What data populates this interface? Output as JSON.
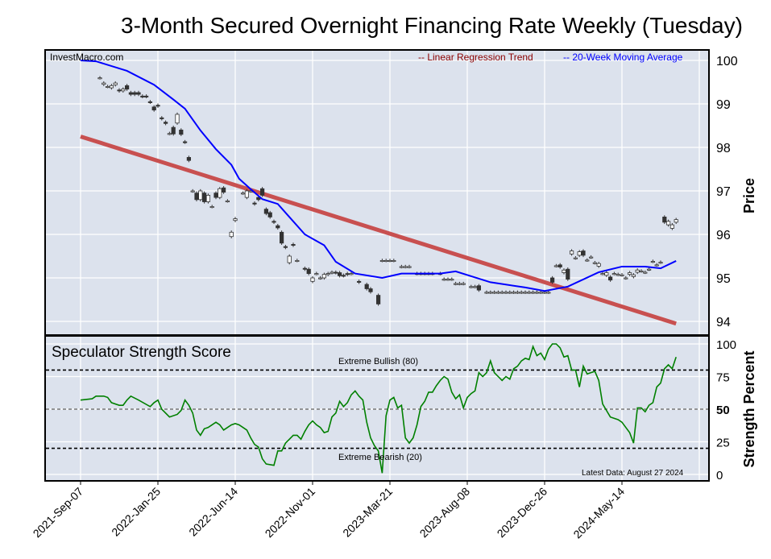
{
  "chart_data": [
    {
      "type": "candlestick",
      "title": "3-Month Secured Overnight Financing Rate Weekly (Tuesday)",
      "watermark": "InvestMacro.com",
      "ylabel": "Price",
      "ylim": [
        93.75,
        100.25
      ],
      "yticks": [
        94,
        95,
        96,
        97,
        98,
        99,
        100
      ],
      "x_unit": "weeks since 2021-Sep-07",
      "xticks": [
        0,
        20,
        40,
        60,
        80,
        100,
        120,
        140
      ],
      "xtick_labels": [
        "2021-Sep-07",
        "2022-Jan-25",
        "2022-Jun-14",
        "2022-Nov-01",
        "2023-Mar-21",
        "2023-Aug-08",
        "2023-Dec-26",
        "2024-May-14"
      ],
      "grid": true,
      "legend": {
        "placement": "top-right",
        "entries": [
          {
            "label": "-- Linear Regression Trend",
            "color": "#8b0000"
          },
          {
            "label": "-- 20-Week Moving Average",
            "color": "#0000ff"
          }
        ]
      },
      "candles_week_open_close": [
        [
          5,
          99.6,
          99.6
        ],
        [
          6,
          99.45,
          99.48
        ],
        [
          7,
          99.4,
          99.4
        ],
        [
          8,
          99.37,
          99.42
        ],
        [
          9,
          99.44,
          99.48
        ],
        [
          10,
          99.32,
          99.3
        ],
        [
          11,
          99.3,
          99.34
        ],
        [
          12,
          99.42,
          99.34
        ],
        [
          13,
          99.26,
          99.22
        ],
        [
          14,
          99.26,
          99.22
        ],
        [
          15,
          99.26,
          99.22
        ],
        [
          16,
          99.18,
          99.17
        ],
        [
          17,
          99.18,
          99.17
        ],
        [
          18,
          99.05,
          99.04
        ],
        [
          19,
          98.93,
          98.86
        ],
        [
          20,
          98.97,
          98.95
        ],
        [
          21,
          98.68,
          98.66
        ],
        [
          22,
          98.58,
          98.55
        ],
        [
          23,
          98.32,
          98.32
        ],
        [
          24,
          98.46,
          98.31
        ],
        [
          25,
          98.56,
          98.76
        ],
        [
          26,
          98.4,
          98.3
        ],
        [
          27,
          98.13,
          98.12
        ],
        [
          28,
          97.77,
          97.7
        ],
        [
          29,
          97.0,
          97.0
        ],
        [
          30,
          96.95,
          96.8
        ],
        [
          31,
          96.8,
          97.0
        ],
        [
          32,
          96.95,
          96.75
        ],
        [
          33,
          96.75,
          96.9
        ],
        [
          34,
          96.64,
          96.64
        ],
        [
          35,
          96.95,
          96.85
        ],
        [
          36,
          96.85,
          97.05
        ],
        [
          37,
          97.07,
          96.97
        ],
        [
          38,
          96.77,
          96.77
        ],
        [
          39,
          95.95,
          96.05
        ],
        [
          40,
          96.32,
          96.36
        ],
        [
          42,
          96.95,
          96.95
        ],
        [
          43,
          96.85,
          97.0
        ],
        [
          44,
          97.0,
          97.0
        ],
        [
          45,
          96.72,
          96.7
        ],
        [
          46,
          96.85,
          96.8
        ],
        [
          47,
          97.05,
          96.9
        ],
        [
          48,
          96.58,
          96.48
        ],
        [
          49,
          96.5,
          96.4
        ],
        [
          50,
          96.3,
          96.28
        ],
        [
          51,
          96.2,
          96.15
        ],
        [
          52,
          96.05,
          95.8
        ],
        [
          53,
          95.72,
          95.7
        ],
        [
          54,
          95.35,
          95.5
        ],
        [
          55,
          95.77,
          95.75
        ],
        [
          56,
          95.4,
          95.4
        ],
        [
          58,
          95.22,
          95.2
        ],
        [
          59,
          95.2,
          95.1
        ],
        [
          60,
          94.92,
          95.0
        ],
        [
          61,
          95.1,
          95.1
        ],
        [
          62,
          95.0,
          95.0
        ],
        [
          63,
          95.0,
          95.08
        ],
        [
          64,
          95.08,
          95.1
        ],
        [
          65,
          95.12,
          95.13
        ],
        [
          66,
          95.13,
          95.12
        ],
        [
          67,
          95.12,
          95.05
        ],
        [
          68,
          95.06,
          95.05
        ],
        [
          69,
          95.1,
          95.08
        ],
        [
          70,
          95.1,
          95.1
        ],
        [
          72,
          94.92,
          94.9
        ],
        [
          74,
          94.85,
          94.75
        ],
        [
          75,
          94.75,
          94.68
        ],
        [
          77,
          94.6,
          94.4
        ],
        [
          78,
          95.4,
          95.4
        ],
        [
          79,
          95.4,
          95.4
        ],
        [
          80,
          95.4,
          95.4
        ],
        [
          81,
          95.4,
          95.4
        ],
        [
          83,
          95.26,
          95.26
        ],
        [
          84,
          95.26,
          95.26
        ],
        [
          85,
          95.26,
          95.26
        ],
        [
          87,
          95.1,
          95.1
        ],
        [
          88,
          95.1,
          95.1
        ],
        [
          89,
          95.1,
          95.1
        ],
        [
          90,
          95.1,
          95.1
        ],
        [
          91,
          95.1,
          95.1
        ],
        [
          93,
          95.1,
          95.1
        ],
        [
          94,
          94.97,
          94.97
        ],
        [
          95,
          94.97,
          94.97
        ],
        [
          96,
          94.97,
          94.97
        ],
        [
          97,
          94.87,
          94.87
        ],
        [
          98,
          94.87,
          94.87
        ],
        [
          99,
          94.87,
          94.87
        ],
        [
          101,
          94.8,
          94.8
        ],
        [
          102,
          94.8,
          94.8
        ],
        [
          103,
          94.82,
          94.72
        ],
        [
          105,
          94.67,
          94.67
        ],
        [
          106,
          94.67,
          94.67
        ],
        [
          107,
          94.67,
          94.67
        ],
        [
          108,
          94.67,
          94.67
        ],
        [
          109,
          94.67,
          94.67
        ],
        [
          110,
          94.67,
          94.67
        ],
        [
          111,
          94.67,
          94.67
        ],
        [
          112,
          94.67,
          94.67
        ],
        [
          113,
          94.67,
          94.67
        ],
        [
          114,
          94.67,
          94.67
        ],
        [
          115,
          94.67,
          94.67
        ],
        [
          116,
          94.67,
          94.67
        ],
        [
          117,
          94.67,
          94.67
        ],
        [
          118,
          94.67,
          94.67
        ],
        [
          119,
          94.67,
          94.67
        ],
        [
          120,
          94.67,
          94.67
        ],
        [
          121,
          94.67,
          94.67
        ],
        [
          122,
          95.0,
          94.9
        ],
        [
          123,
          95.28,
          95.28
        ],
        [
          124,
          95.3,
          95.25
        ],
        [
          125,
          95.12,
          95.18
        ],
        [
          126,
          95.2,
          94.97
        ],
        [
          127,
          95.55,
          95.62
        ],
        [
          128,
          95.46,
          95.46
        ],
        [
          129,
          95.52,
          95.6
        ],
        [
          130,
          95.62,
          95.52
        ],
        [
          131,
          95.41,
          95.41
        ],
        [
          132,
          95.48,
          95.48
        ],
        [
          133,
          95.35,
          95.35
        ],
        [
          134,
          95.27,
          95.33
        ],
        [
          135,
          95.1,
          95.1
        ],
        [
          136,
          95.06,
          95.12
        ],
        [
          137,
          95.02,
          94.95
        ],
        [
          138,
          95.1,
          95.1
        ],
        [
          139,
          95.08,
          95.08
        ],
        [
          140,
          95.07,
          95.07
        ],
        [
          141,
          95.0,
          95.0
        ],
        [
          142,
          95.08,
          95.12
        ],
        [
          143,
          95.03,
          95.07
        ],
        [
          144,
          95.13,
          95.18
        ],
        [
          145,
          95.16,
          95.16
        ],
        [
          146,
          95.13,
          95.13
        ],
        [
          147,
          95.2,
          95.2
        ],
        [
          148,
          95.38,
          95.38
        ],
        [
          149,
          95.3,
          95.3
        ],
        [
          150,
          95.36,
          95.36
        ],
        [
          151,
          96.4,
          96.28
        ],
        [
          152,
          96.22,
          96.3
        ],
        [
          153,
          96.14,
          96.22
        ],
        [
          154,
          96.28,
          96.34
        ]
      ],
      "moving_average_20w": [
        [
          0,
          100.0
        ],
        [
          4,
          99.98
        ],
        [
          12,
          99.76
        ],
        [
          19,
          99.44
        ],
        [
          24,
          99.1
        ],
        [
          27,
          98.89
        ],
        [
          31,
          98.39
        ],
        [
          35,
          97.96
        ],
        [
          39,
          97.6
        ],
        [
          41,
          97.28
        ],
        [
          44,
          97.04
        ],
        [
          47,
          96.81
        ],
        [
          51,
          96.7
        ],
        [
          54,
          96.4
        ],
        [
          58,
          96.0
        ],
        [
          63,
          95.75
        ],
        [
          66,
          95.37
        ],
        [
          71,
          95.1
        ],
        [
          78,
          95.0
        ],
        [
          83,
          95.1
        ],
        [
          93,
          95.1
        ],
        [
          97,
          95.15
        ],
        [
          106,
          94.9
        ],
        [
          115,
          94.78
        ],
        [
          120,
          94.7
        ],
        [
          126,
          94.8
        ],
        [
          134,
          95.13
        ],
        [
          140,
          95.26
        ],
        [
          146,
          95.26
        ],
        [
          150,
          95.22
        ],
        [
          154,
          95.39
        ]
      ],
      "regression_trend": [
        [
          0,
          98.25
        ],
        [
          154,
          93.95
        ]
      ]
    },
    {
      "type": "line",
      "title": "Speculator Strength Score",
      "ylabel": "Strength Percent",
      "ylim": [
        0,
        100
      ],
      "yticks": [
        0,
        25,
        50,
        75,
        100
      ],
      "annotations": {
        "bullish": "Extreme Bullish (80)",
        "bearish": "Extreme Bearish (20)",
        "latest": "Latest Data: August 27 2024"
      },
      "thresholds": {
        "bullish": 80,
        "neutral": 50,
        "bearish": 20
      },
      "series_color": "#008000",
      "values_week_strength": [
        [
          0,
          57
        ],
        [
          3,
          58
        ],
        [
          4,
          60
        ],
        [
          6,
          60
        ],
        [
          7,
          59
        ],
        [
          8,
          55
        ],
        [
          10,
          53
        ],
        [
          11,
          53
        ],
        [
          12,
          57
        ],
        [
          13,
          60
        ],
        [
          15,
          57
        ],
        [
          18,
          52
        ],
        [
          19,
          55
        ],
        [
          20,
          57
        ],
        [
          21,
          50
        ],
        [
          23,
          44
        ],
        [
          25,
          46
        ],
        [
          26,
          49
        ],
        [
          27,
          57
        ],
        [
          28,
          53
        ],
        [
          29,
          47
        ],
        [
          30,
          34
        ],
        [
          31,
          30
        ],
        [
          32,
          35
        ],
        [
          33,
          36
        ],
        [
          34,
          38
        ],
        [
          35,
          40
        ],
        [
          36,
          38
        ],
        [
          37,
          34
        ],
        [
          38,
          36
        ],
        [
          39,
          38
        ],
        [
          40,
          39
        ],
        [
          41,
          38
        ],
        [
          42,
          36
        ],
        [
          43,
          34
        ],
        [
          44,
          28
        ],
        [
          45,
          23
        ],
        [
          46,
          21
        ],
        [
          47,
          12
        ],
        [
          48,
          8
        ],
        [
          50,
          7
        ],
        [
          51,
          18
        ],
        [
          52,
          18
        ],
        [
          53,
          24
        ],
        [
          54,
          27
        ],
        [
          55,
          30
        ],
        [
          56,
          30
        ],
        [
          57,
          27
        ],
        [
          58,
          33
        ],
        [
          59,
          38
        ],
        [
          60,
          41
        ],
        [
          61,
          38
        ],
        [
          62,
          36
        ],
        [
          63,
          32
        ],
        [
          64,
          33
        ],
        [
          65,
          44
        ],
        [
          66,
          47
        ],
        [
          67,
          56
        ],
        [
          68,
          52
        ],
        [
          69,
          55
        ],
        [
          70,
          61
        ],
        [
          71,
          64
        ],
        [
          72,
          60
        ],
        [
          73,
          57
        ],
        [
          74,
          40
        ],
        [
          75,
          28
        ],
        [
          76,
          22
        ],
        [
          77,
          18
        ],
        [
          78,
          1
        ],
        [
          79,
          45
        ],
        [
          80,
          57
        ],
        [
          81,
          59
        ],
        [
          82,
          51
        ],
        [
          83,
          53
        ],
        [
          84,
          28
        ],
        [
          85,
          24
        ],
        [
          86,
          28
        ],
        [
          87,
          38
        ],
        [
          88,
          52
        ],
        [
          89,
          56
        ],
        [
          90,
          63
        ],
        [
          91,
          63
        ],
        [
          92,
          68
        ],
        [
          93,
          72
        ],
        [
          94,
          75
        ],
        [
          95,
          73
        ],
        [
          96,
          63
        ],
        [
          97,
          58
        ],
        [
          98,
          61
        ],
        [
          99,
          51
        ],
        [
          100,
          59
        ],
        [
          101,
          62
        ],
        [
          102,
          64
        ],
        [
          103,
          78
        ],
        [
          104,
          75
        ],
        [
          105,
          78
        ],
        [
          106,
          87
        ],
        [
          107,
          78
        ],
        [
          108,
          75
        ],
        [
          109,
          72
        ],
        [
          110,
          75
        ],
        [
          111,
          73
        ],
        [
          112,
          81
        ],
        [
          113,
          83
        ],
        [
          114,
          87
        ],
        [
          115,
          89
        ],
        [
          116,
          88
        ],
        [
          117,
          98
        ],
        [
          118,
          91
        ],
        [
          119,
          93
        ],
        [
          120,
          88
        ],
        [
          121,
          96
        ],
        [
          122,
          100
        ],
        [
          123,
          100
        ],
        [
          124,
          97
        ],
        [
          125,
          90
        ],
        [
          126,
          91
        ],
        [
          127,
          80
        ],
        [
          128,
          80
        ],
        [
          129,
          67
        ],
        [
          130,
          83
        ],
        [
          131,
          77
        ],
        [
          132,
          78
        ],
        [
          133,
          79
        ],
        [
          134,
          72
        ],
        [
          135,
          54
        ],
        [
          136,
          49
        ],
        [
          137,
          44
        ],
        [
          138,
          43
        ],
        [
          139,
          42
        ],
        [
          140,
          40
        ],
        [
          141,
          36
        ],
        [
          142,
          32
        ],
        [
          143,
          24
        ],
        [
          144,
          51
        ],
        [
          145,
          51
        ],
        [
          146,
          48
        ],
        [
          147,
          53
        ],
        [
          148,
          55
        ],
        [
          149,
          67
        ],
        [
          150,
          70
        ],
        [
          151,
          81
        ],
        [
          152,
          84
        ],
        [
          153,
          81
        ],
        [
          154,
          90
        ]
      ]
    }
  ]
}
